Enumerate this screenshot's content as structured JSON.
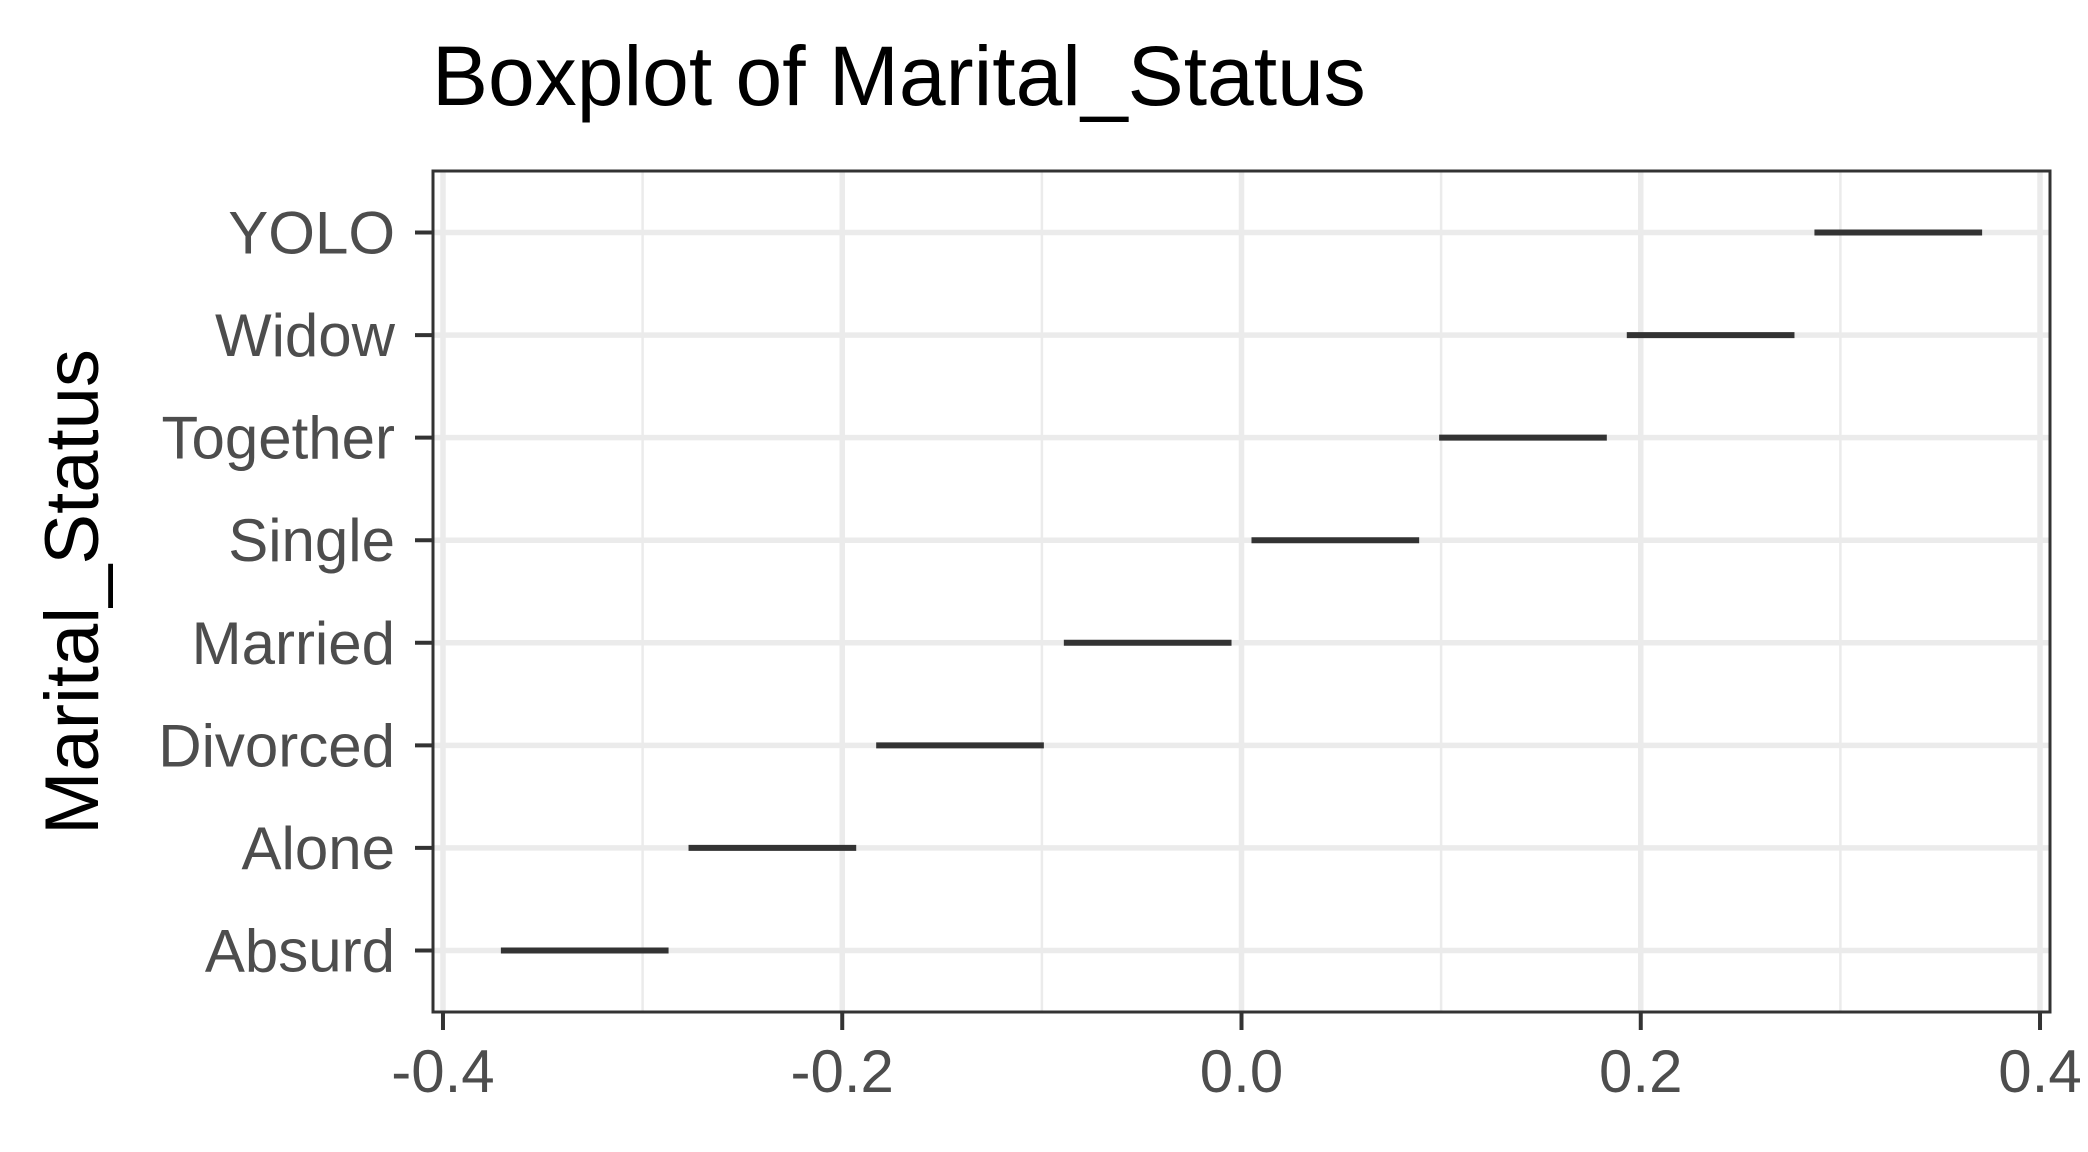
{
  "chart_data": {
    "type": "boxplot",
    "title": "Boxplot of Marital_Status",
    "xlabel": "",
    "ylabel": "Marital_Status",
    "categories": [
      "Absurd",
      "Alone",
      "Divorced",
      "Married",
      "Single",
      "Together",
      "Widow",
      "YOLO"
    ],
    "boxes": [
      {
        "category": "Absurd",
        "min": -0.371,
        "max": -0.287
      },
      {
        "category": "Alone",
        "min": -0.277,
        "max": -0.193
      },
      {
        "category": "Divorced",
        "min": -0.183,
        "max": -0.099
      },
      {
        "category": "Married",
        "min": -0.089,
        "max": -0.005
      },
      {
        "category": "Single",
        "min": 0.005,
        "max": 0.089
      },
      {
        "category": "Together",
        "min": 0.099,
        "max": 0.183
      },
      {
        "category": "Widow",
        "min": 0.193,
        "max": 0.277
      },
      {
        "category": "YOLO",
        "min": 0.287,
        "max": 0.371
      }
    ],
    "xticks": [
      -0.4,
      -0.2,
      0.0,
      0.2,
      0.4
    ],
    "xtick_labels": [
      "-0.4",
      "-0.2",
      "0.0",
      "0.2",
      "0.4"
    ],
    "xlim": [
      -0.405,
      0.405
    ],
    "grid": true,
    "legend": "none"
  }
}
